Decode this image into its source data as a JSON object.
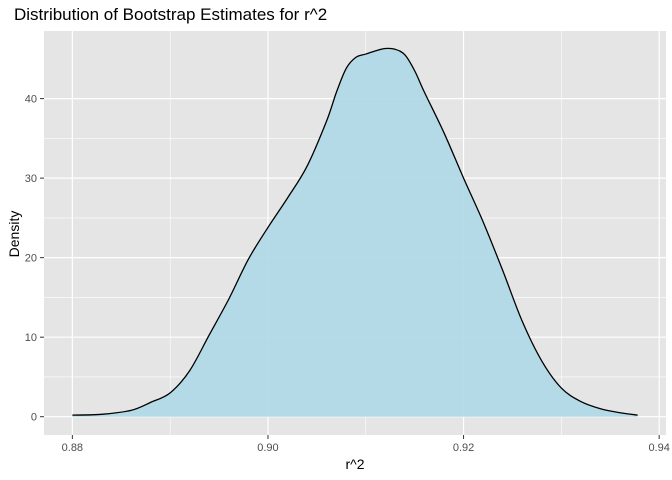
{
  "chart_data": {
    "type": "area",
    "title": "Distribution of Bootstrap Estimates for r^2",
    "xlabel": "r^2",
    "ylabel": "Density",
    "xlim": [
      0.8771,
      0.9407
    ],
    "ylim": [
      -2.3,
      48.5
    ],
    "x_ticks": [
      0.88,
      0.9,
      0.92,
      0.94
    ],
    "x_tick_labels": [
      "0.88",
      "0.90",
      "0.92",
      "0.94"
    ],
    "y_ticks": [
      0,
      10,
      20,
      30,
      40
    ],
    "y_tick_labels": [
      "0",
      "10",
      "20",
      "30",
      "40"
    ],
    "grid": true,
    "legend": "none",
    "colors": {
      "panel": "#e5e5e5",
      "grid": "#ffffff",
      "fill": "#add8e6",
      "line": "#000000"
    },
    "series": [
      {
        "x": [
          0.88,
          0.883,
          0.886,
          0.888,
          0.89,
          0.892,
          0.894,
          0.896,
          0.898,
          0.9,
          0.902,
          0.904,
          0.906,
          0.907,
          0.908,
          0.909,
          0.91,
          0.911,
          0.912,
          0.913,
          0.914,
          0.915,
          0.916,
          0.918,
          0.92,
          0.922,
          0.924,
          0.926,
          0.928,
          0.93,
          0.932,
          0.934,
          0.936,
          0.9378
        ],
        "y": [
          0.2,
          0.3,
          0.8,
          1.8,
          3.0,
          5.8,
          10.3,
          14.8,
          19.8,
          23.8,
          27.5,
          31.5,
          37.2,
          40.8,
          43.8,
          45.2,
          45.6,
          46.0,
          46.3,
          46.2,
          45.5,
          43.5,
          40.8,
          35.7,
          30.0,
          24.5,
          18.4,
          12.0,
          7.0,
          3.6,
          1.9,
          1.0,
          0.5,
          0.2
        ]
      }
    ]
  }
}
